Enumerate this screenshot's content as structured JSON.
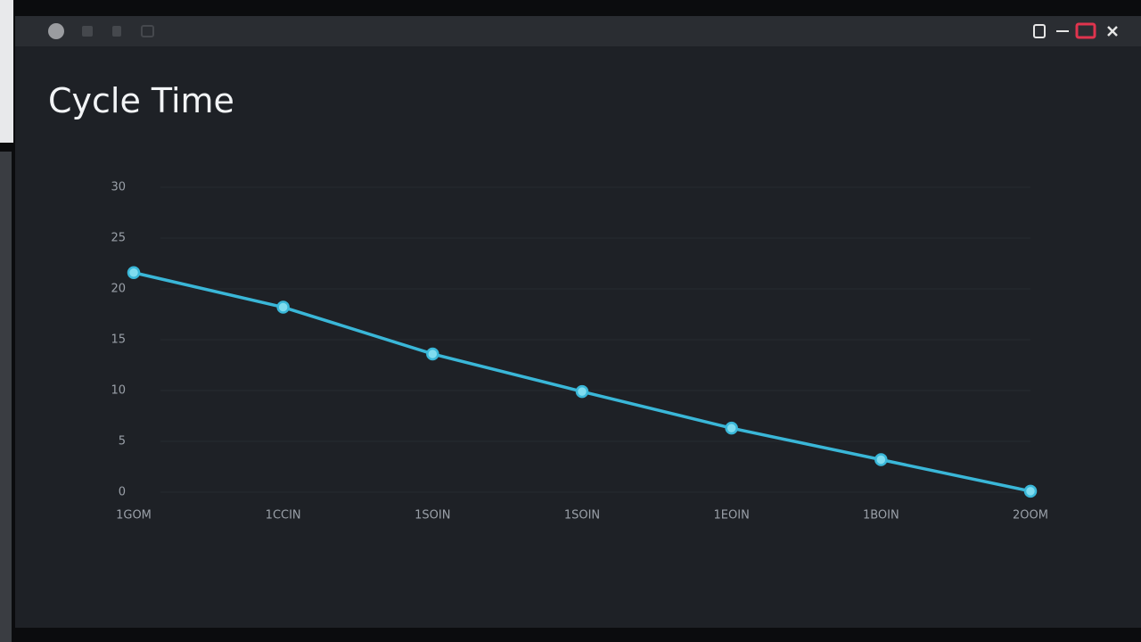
{
  "chart_data": {
    "type": "line",
    "title": "Cycle Time",
    "categories": [
      "1GOM",
      "1CCIN",
      "1SOIN",
      "1SOIN",
      "1EOIN",
      "1BOIN",
      "2OOM"
    ],
    "series": [
      {
        "name": "Cycle Time",
        "color": "#3ab7d8",
        "values": [
          21.6,
          18.2,
          13.6,
          9.9,
          6.3,
          3.2,
          0.1
        ]
      }
    ],
    "ylim": [
      0,
      30
    ],
    "yticks": [
      0,
      5,
      10,
      15,
      20,
      25,
      30
    ],
    "grid": true
  }
}
